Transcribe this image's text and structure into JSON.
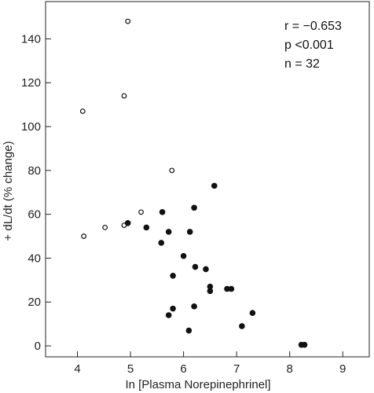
{
  "chart_data": {
    "type": "scatter",
    "xlabel": "In [Plasma Norepinephrinel]",
    "ylabel": "+ dL/dt (% change)",
    "xlim": [
      3.4,
      9.5
    ],
    "ylim": [
      -5,
      157
    ],
    "xticks": [
      4,
      5,
      6,
      7,
      8,
      9
    ],
    "yticks": [
      0,
      20,
      40,
      60,
      80,
      100,
      120,
      140
    ],
    "grid": false,
    "annotations": [
      "r = −0.653",
      "p <0.001",
      "n = 32"
    ],
    "series": [
      {
        "marker": "open-circle",
        "points": [
          {
            "x": 4.95,
            "y": 148
          },
          {
            "x": 4.88,
            "y": 114
          },
          {
            "x": 4.1,
            "y": 107
          },
          {
            "x": 5.78,
            "y": 80
          },
          {
            "x": 5.2,
            "y": 61
          },
          {
            "x": 4.88,
            "y": 55
          },
          {
            "x": 4.52,
            "y": 54
          },
          {
            "x": 4.12,
            "y": 50
          }
        ]
      },
      {
        "marker": "filled-circle",
        "points": [
          {
            "x": 6.58,
            "y": 73
          },
          {
            "x": 6.2,
            "y": 63
          },
          {
            "x": 5.6,
            "y": 61
          },
          {
            "x": 4.95,
            "y": 56
          },
          {
            "x": 5.3,
            "y": 54
          },
          {
            "x": 5.72,
            "y": 52
          },
          {
            "x": 6.12,
            "y": 52
          },
          {
            "x": 5.58,
            "y": 47
          },
          {
            "x": 6.0,
            "y": 41
          },
          {
            "x": 6.22,
            "y": 36
          },
          {
            "x": 6.42,
            "y": 35
          },
          {
            "x": 5.8,
            "y": 32
          },
          {
            "x": 6.5,
            "y": 27
          },
          {
            "x": 6.5,
            "y": 25
          },
          {
            "x": 6.82,
            "y": 26
          },
          {
            "x": 6.9,
            "y": 26
          },
          {
            "x": 6.2,
            "y": 18
          },
          {
            "x": 5.8,
            "y": 17
          },
          {
            "x": 7.3,
            "y": 15
          },
          {
            "x": 5.72,
            "y": 14
          },
          {
            "x": 7.1,
            "y": 9
          },
          {
            "x": 6.1,
            "y": 7
          },
          {
            "x": 8.22,
            "y": 0.5
          },
          {
            "x": 8.28,
            "y": 0.5
          }
        ]
      }
    ]
  }
}
